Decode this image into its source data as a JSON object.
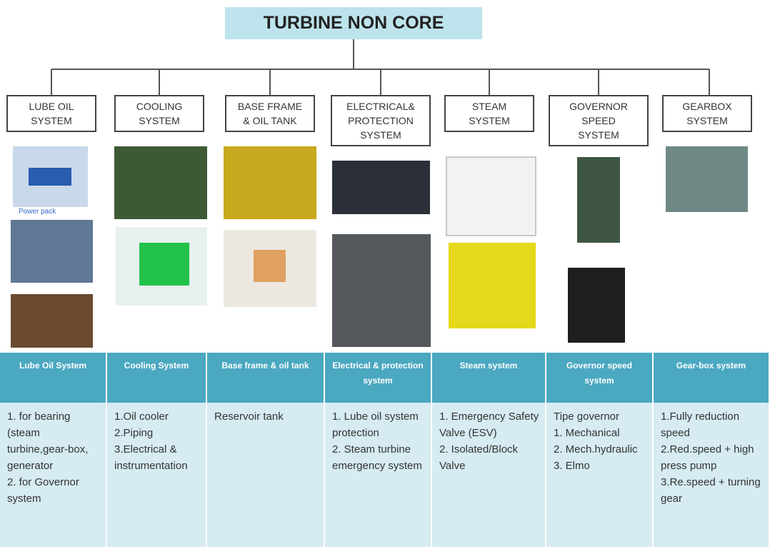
{
  "title": "TURBINE NON CORE",
  "nodes": [
    {
      "label_lines": [
        "LUBE OIL",
        "SYSTEM"
      ]
    },
    {
      "label_lines": [
        "COOLING",
        "SYSTEM"
      ]
    },
    {
      "label_lines": [
        "BASE FRAME",
        "& OIL TANK"
      ]
    },
    {
      "label_lines": [
        "ELECTRICAL&",
        "PROTECTION",
        "SYSTEM"
      ]
    },
    {
      "label_lines": [
        "STEAM",
        "SYSTEM"
      ]
    },
    {
      "label_lines": [
        "GOVERNOR",
        "SPEED",
        "SYSTEM"
      ]
    },
    {
      "label_lines": [
        "GEARBOX",
        "SYSTEM"
      ]
    }
  ],
  "images": {
    "caption": "Power pack"
  },
  "table": {
    "headers": [
      "Lube Oil System",
      "Cooling System",
      "Base frame & oil tank",
      "Electrical & protection system",
      "Steam system",
      "Governor speed system",
      "Gear-box system"
    ],
    "cells": [
      [
        "1. for bearing (steam turbine,gear-box, generator",
        "2. for Governor system"
      ],
      [
        "1.Oil cooler",
        "2.Piping",
        "3.Electrical & instrumentation"
      ],
      [
        "Reservoir tank"
      ],
      [
        "1. Lube oil system protection",
        "2. Steam turbine emergency system"
      ],
      [
        "1. Emergency Safety Valve (ESV)",
        "2. Isolated/Block Valve"
      ],
      [
        "Tipe governor",
        "1. Mechanical",
        "2. Mech.hydraulic",
        "3. Elmo"
      ],
      [
        "1.Fully reduction speed",
        "2.Red.speed + high press pump",
        "3.Re.speed + turning gear"
      ]
    ]
  }
}
